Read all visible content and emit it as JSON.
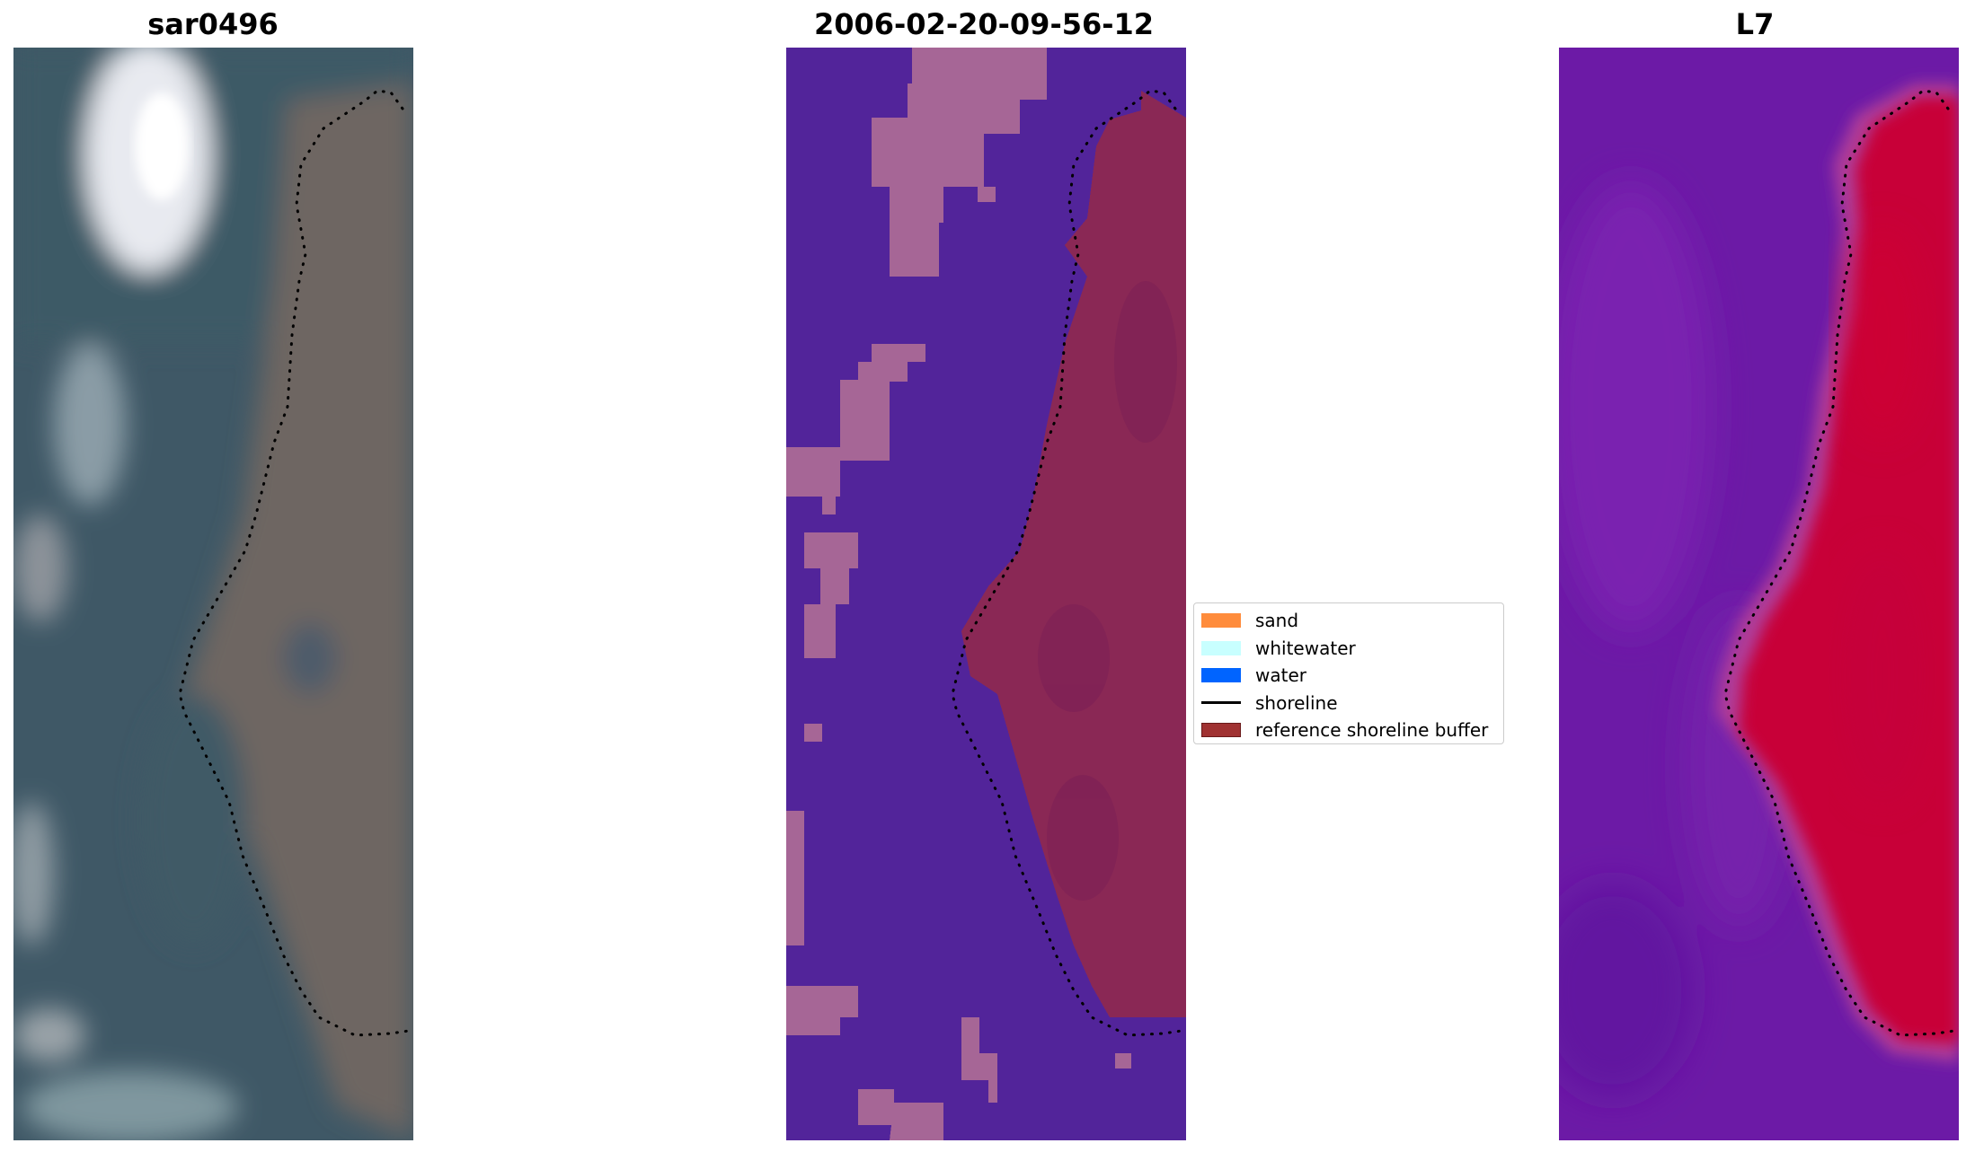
{
  "panels": [
    {
      "title": "sar0496"
    },
    {
      "title": "2006-02-20-09-56-12"
    },
    {
      "title": "L7"
    }
  ],
  "legend": {
    "items": [
      {
        "label": "sand",
        "color": "#ff8c3c",
        "kind": "patch"
      },
      {
        "label": "whitewater",
        "color": "#c8ffff",
        "kind": "patch"
      },
      {
        "label": "water",
        "color": "#0064ff",
        "kind": "patch"
      },
      {
        "label": "shoreline",
        "color": "#000000",
        "kind": "line"
      },
      {
        "label": "reference shoreline buffer",
        "color": "#a03232",
        "kind": "patch"
      }
    ]
  },
  "colors": {
    "classified_water": "#52249a",
    "classified_other": "#a66696",
    "classified_buffer": "#8a2855",
    "mndwi_low": "#6a14a8",
    "mndwi_high": "#c8003a"
  }
}
